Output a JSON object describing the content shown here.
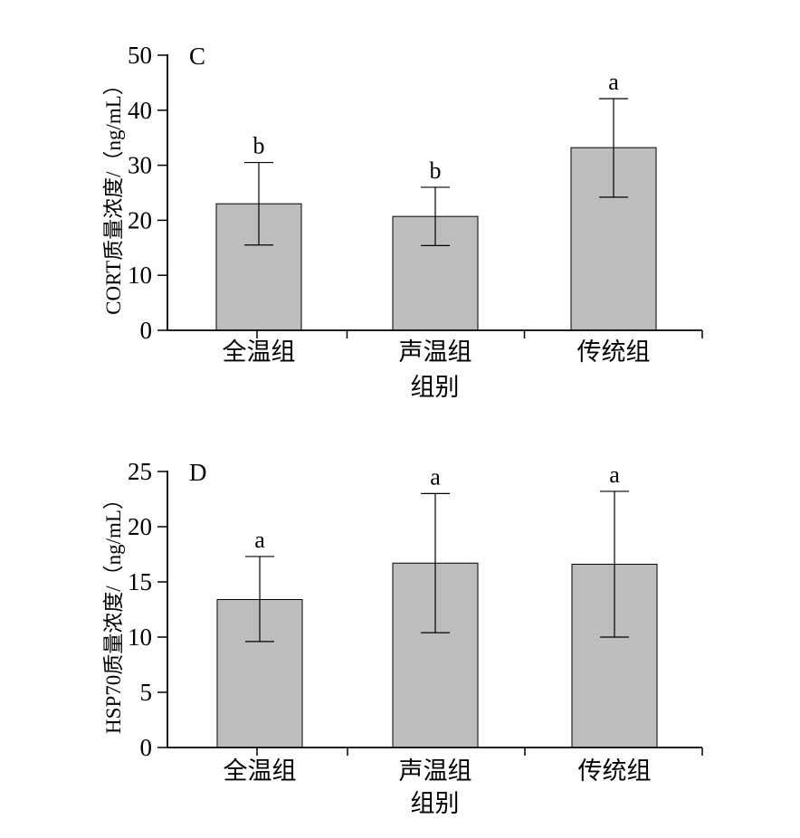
{
  "chart_data": [
    {
      "type": "bar",
      "panel_label": "C",
      "categories": [
        "全温组",
        "声温组",
        "传统组"
      ],
      "values": [
        23.0,
        20.7,
        33.2
      ],
      "error_lower": [
        15.5,
        15.4,
        24.2
      ],
      "error_upper": [
        30.5,
        26.0,
        42.1
      ],
      "significance": [
        "b",
        "b",
        "a"
      ],
      "xlabel": "组别",
      "ylabel": "CORT质量浓度/（ng/mL）",
      "ylim": [
        0,
        50
      ],
      "yticks": [
        0,
        10,
        20,
        30,
        40,
        50
      ],
      "bar_color": "#bdbdbd",
      "grid": false
    },
    {
      "type": "bar",
      "panel_label": "D",
      "categories": [
        "全温组",
        "声温组",
        "传统组"
      ],
      "values": [
        13.4,
        16.7,
        16.6
      ],
      "error_lower": [
        9.6,
        10.4,
        10.0
      ],
      "error_upper": [
        17.3,
        23.0,
        23.2
      ],
      "significance": [
        "a",
        "a",
        "a"
      ],
      "xlabel": "组别",
      "ylabel": "HSP70质量浓度/（ng/mL）",
      "ylim": [
        0,
        25
      ],
      "yticks": [
        0,
        5,
        10,
        15,
        20,
        25
      ],
      "bar_color": "#bdbdbd",
      "grid": false
    }
  ]
}
